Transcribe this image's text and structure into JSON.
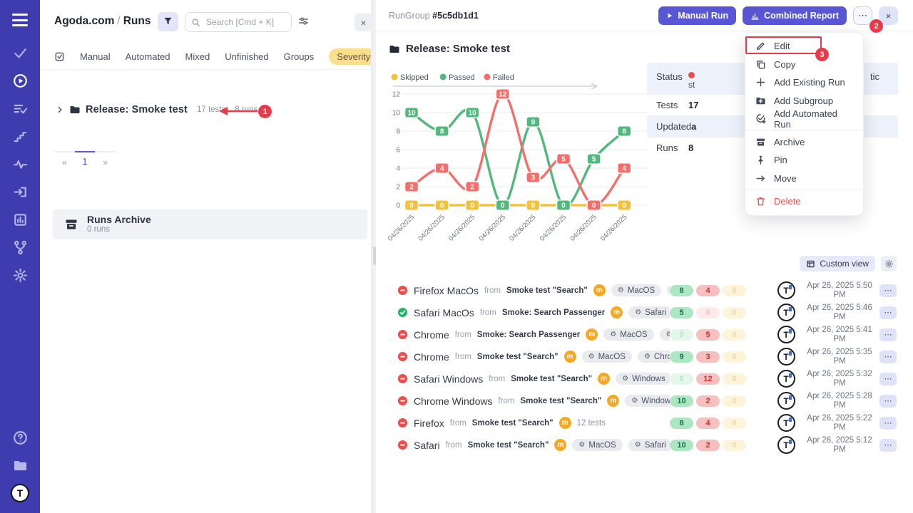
{
  "annotations": {
    "step1": "1",
    "step2": "2",
    "step3": "3",
    "color": "#e93a4a"
  },
  "sidebar": {
    "nav": [
      {
        "id": "tests",
        "icon": "check"
      },
      {
        "id": "runs",
        "icon": "play-circle",
        "active": true
      },
      {
        "id": "plans",
        "icon": "list-check"
      },
      {
        "id": "milestones",
        "icon": "stairs"
      },
      {
        "id": "pulse",
        "icon": "pulse"
      },
      {
        "id": "import",
        "icon": "import"
      },
      {
        "id": "analytics",
        "icon": "bar-chart"
      },
      {
        "id": "branches",
        "icon": "branch"
      },
      {
        "id": "settings",
        "icon": "gear"
      }
    ],
    "bottom": [
      {
        "id": "help",
        "icon": "help"
      },
      {
        "id": "projects",
        "icon": "folder"
      },
      {
        "id": "logo",
        "icon": "logo",
        "text": "T"
      }
    ]
  },
  "left_panel": {
    "breadcrumb": {
      "project": "Agoda.com",
      "sep": "/",
      "page": "Runs"
    },
    "search_placeholder": "Search [Cmd + K]",
    "close": "×",
    "tabs": {
      "items": [
        {
          "label": "Manual"
        },
        {
          "label": "Automated"
        },
        {
          "label": "Mixed"
        },
        {
          "label": "Unfinished"
        },
        {
          "label": "Groups"
        },
        {
          "label": "Severity",
          "highlight": true
        }
      ]
    },
    "tree": {
      "name": "Release: Smoke test",
      "tests": "17 tests",
      "runs": "8 runs"
    },
    "pagination": {
      "prev": "«",
      "page": "1",
      "next": "»"
    },
    "archive": {
      "title": "Runs Archive",
      "count": "0 runs"
    }
  },
  "right_panel": {
    "header": {
      "group_label": "RunGroup",
      "group_id": "#5c5db1d1",
      "manual_run": "Manual Run",
      "combined_report": "Combined Report",
      "more": "⋯",
      "close": "×"
    },
    "title": "Release: Smoke test",
    "details": {
      "rows": [
        {
          "label": "Status",
          "value": "",
          "dot": true,
          "fragment": "st",
          "shaded": true,
          "tall": true
        },
        {
          "label": "Tests",
          "value": "17"
        },
        {
          "label": "Updated",
          "value": "a",
          "shaded": true
        },
        {
          "label": "Runs",
          "value": "8"
        }
      ],
      "right_fragment": "tic"
    },
    "menu": {
      "items": [
        {
          "label": "Edit",
          "icon": "pencil",
          "annotated": true
        },
        {
          "label": "Copy",
          "icon": "copy"
        },
        {
          "label": "Add Existing Run",
          "icon": "plus"
        },
        {
          "label": "Add Subgroup",
          "icon": "folder-plus"
        },
        {
          "label": "Add Automated Run",
          "icon": "check-circle-plus",
          "divider_after": true
        },
        {
          "label": "Archive",
          "icon": "archive"
        },
        {
          "label": "Pin",
          "icon": "pin"
        },
        {
          "label": "Move",
          "icon": "arrow-right",
          "divider_after": true
        },
        {
          "label": "Delete",
          "icon": "trash",
          "danger": true
        }
      ]
    },
    "custom_view": "Custom view",
    "runs_meta": {
      "from_label": "from",
      "manual_badge": "m",
      "avatar_text": "T",
      "row_menu": "⋯"
    },
    "runs": [
      {
        "status": "failed",
        "name": "Firefox MacOs",
        "source": "Smoke test \"Search\"",
        "envs": [
          "MacOS",
          "Firefox"
        ],
        "tests": "12 tests",
        "passed": 8,
        "failed": 4,
        "skipped": 0,
        "date": "Apr 26, 2025 5:50 PM"
      },
      {
        "status": "passed",
        "name": "Safari MacOs",
        "source": "Smoke: Search Passenger",
        "envs": [
          "Safari",
          "MacOS"
        ],
        "tests": "5 te",
        "passed": 5,
        "failed": 0,
        "skipped": 0,
        "date": "Apr 26, 2025 5:46 PM"
      },
      {
        "status": "failed",
        "name": "Chrome",
        "source": "Smoke: Search Passenger",
        "envs": [
          "MacOS",
          "Chrome"
        ],
        "tests": "5 tests",
        "passed": 0,
        "failed": 5,
        "skipped": 0,
        "date": "Apr 26, 2025 5:41 PM"
      },
      {
        "status": "failed",
        "name": "Chrome",
        "source": "Smoke test \"Search\"",
        "envs": [
          "MacOS",
          "Chrome"
        ],
        "tests": "12 tests",
        "passed": 9,
        "failed": 3,
        "skipped": 0,
        "date": "Apr 26, 2025 5:35 PM"
      },
      {
        "status": "failed",
        "name": "Safari Windows",
        "source": "Smoke test \"Search\"",
        "envs": [
          "Windows",
          "Safari"
        ],
        "tests": "12 te",
        "passed": 0,
        "failed": 12,
        "skipped": 0,
        "date": "Apr 26, 2025 5:32 PM"
      },
      {
        "status": "failed",
        "name": "Chrome Windows",
        "source": "Smoke test \"Search\"",
        "envs": [
          "Windows",
          "Chrome"
        ],
        "tests": "",
        "passed": 10,
        "failed": 2,
        "skipped": 0,
        "date": "Apr 26, 2025 5:28 PM"
      },
      {
        "status": "failed",
        "name": "Firefox",
        "source": "Smoke test \"Search\"",
        "envs": [],
        "tests": "12 tests",
        "passed": 8,
        "failed": 4,
        "skipped": 0,
        "date": "Apr 26, 2025 5:22 PM"
      },
      {
        "status": "failed",
        "name": "Safari",
        "source": "Smoke test \"Search\"",
        "envs": [
          "MacOS",
          "Safari"
        ],
        "tests": "12 tests",
        "passed": 10,
        "failed": 2,
        "skipped": 0,
        "date": "Apr 26, 2025 5:12 PM"
      }
    ]
  },
  "chart_data": {
    "type": "line",
    "x": [
      "04/26/2025",
      "04/26/2025",
      "04/26/2025",
      "04/26/2025",
      "04/26/2025",
      "04/26/2025",
      "04/26/2025",
      "04/26/2025"
    ],
    "series": [
      {
        "name": "Skipped",
        "color": "#f0c23d",
        "values": [
          0,
          0,
          0,
          0,
          0,
          0,
          0,
          0
        ]
      },
      {
        "name": "Passed",
        "color": "#52b87e",
        "values": [
          10,
          8,
          10,
          0,
          9,
          0,
          5,
          8
        ]
      },
      {
        "name": "Failed",
        "color": "#f26f6b",
        "values": [
          2,
          4,
          2,
          12,
          3,
          5,
          0,
          4
        ]
      }
    ],
    "ylim": [
      0,
      12
    ],
    "yticks": [
      0,
      2,
      4,
      6,
      8,
      10,
      12
    ],
    "legend_position": "top",
    "grid": true,
    "point_labels": true
  }
}
